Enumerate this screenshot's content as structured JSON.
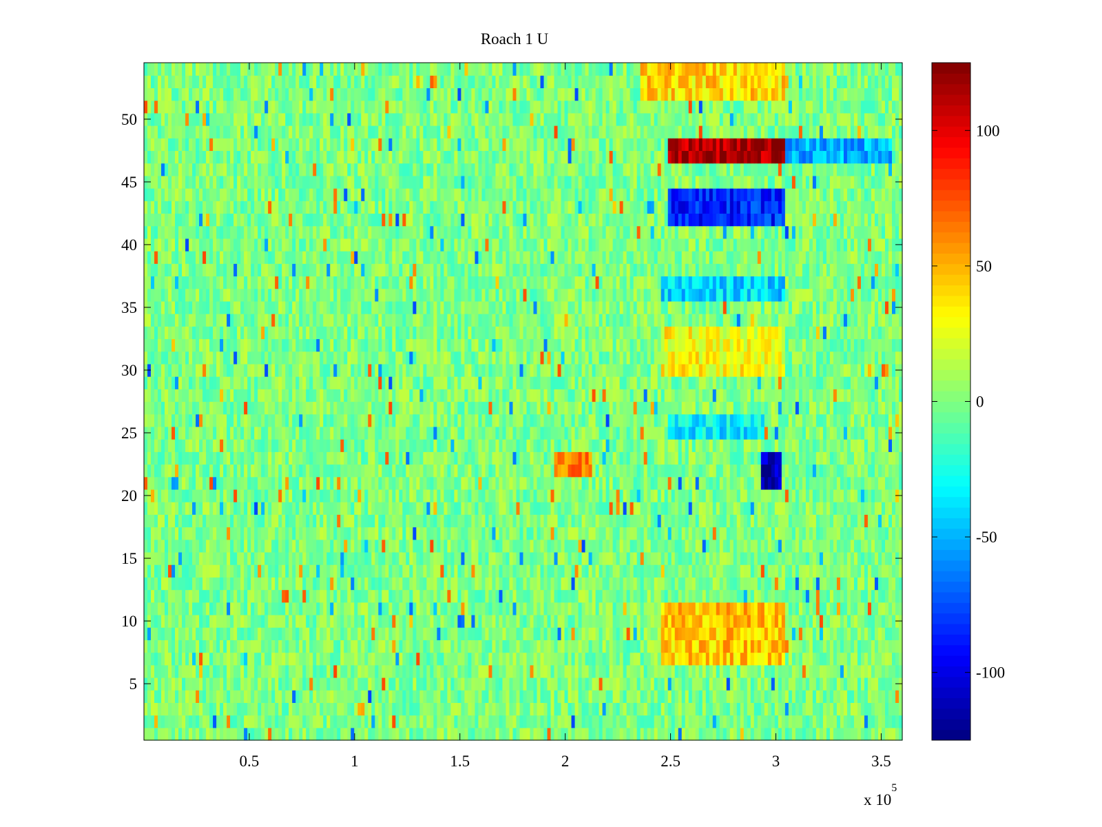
{
  "chart_data": {
    "type": "heatmap",
    "title": "Roach 1 U",
    "xlabel": "",
    "ylabel": "",
    "x_multiplier_label": "x 10",
    "x_multiplier_exponent": "5",
    "xlim": [
      0,
      360000
    ],
    "ylim": [
      0.5,
      54.5
    ],
    "x_ticks": [
      {
        "value": 0.5,
        "label": "0.5"
      },
      {
        "value": 1,
        "label": "1"
      },
      {
        "value": 1.5,
        "label": "1.5"
      },
      {
        "value": 2,
        "label": "2"
      },
      {
        "value": 2.5,
        "label": "2.5"
      },
      {
        "value": 3,
        "label": "3"
      },
      {
        "value": 3.5,
        "label": "3.5"
      }
    ],
    "y_ticks": [
      {
        "value": 5,
        "label": "5"
      },
      {
        "value": 10,
        "label": "10"
      },
      {
        "value": 15,
        "label": "15"
      },
      {
        "value": 20,
        "label": "20"
      },
      {
        "value": 25,
        "label": "25"
      },
      {
        "value": 30,
        "label": "30"
      },
      {
        "value": 35,
        "label": "35"
      },
      {
        "value": 40,
        "label": "40"
      },
      {
        "value": 45,
        "label": "45"
      },
      {
        "value": 50,
        "label": "50"
      }
    ],
    "colorbar": {
      "colormap": "jet",
      "range": [
        -125,
        125
      ],
      "ticks": [
        {
          "value": 100,
          "label": "100"
        },
        {
          "value": 50,
          "label": "50"
        },
        {
          "value": 0,
          "label": "0"
        },
        {
          "value": -50,
          "label": "-50"
        },
        {
          "value": -100,
          "label": "-100"
        }
      ]
    },
    "grid": false,
    "legend": "none",
    "rows": 54,
    "background_level": 0,
    "noise_amplitude": 25,
    "features": [
      {
        "rows": [
          47,
          48
        ],
        "x": [
          248000,
          305000
        ],
        "value": 115
      },
      {
        "rows": [
          47,
          48
        ],
        "x": [
          305000,
          355000
        ],
        "value": -50
      },
      {
        "rows": [
          42,
          44
        ],
        "x": [
          248000,
          305000
        ],
        "value": -85
      },
      {
        "rows": [
          21,
          23
        ],
        "x": [
          293000,
          303000
        ],
        "value": -115
      },
      {
        "rows": [
          22,
          23
        ],
        "x": [
          195000,
          212000
        ],
        "value": 60
      },
      {
        "rows": [
          7,
          11
        ],
        "x": [
          245000,
          305000
        ],
        "value": 45
      },
      {
        "rows": [
          30,
          33
        ],
        "x": [
          245000,
          305000
        ],
        "value": 30
      },
      {
        "rows": [
          52,
          54
        ],
        "x": [
          235000,
          305000
        ],
        "value": 40
      },
      {
        "rows": [
          25,
          26
        ],
        "x": [
          248000,
          295000
        ],
        "value": -35
      },
      {
        "rows": [
          36,
          37
        ],
        "x": [
          245000,
          305000
        ],
        "value": -40
      }
    ]
  }
}
